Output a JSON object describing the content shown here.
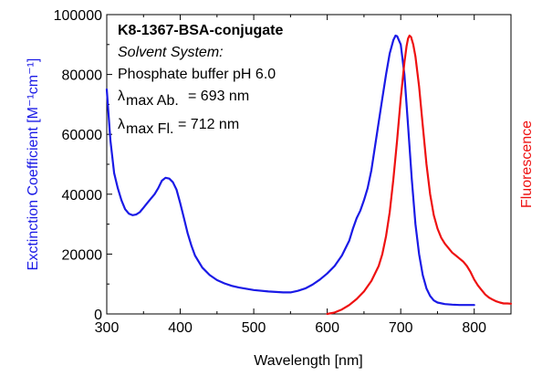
{
  "chart_data": {
    "type": "line",
    "title": "",
    "xlabel": "Wavelength [nm]",
    "ylabel_left": "Exctinction Coefficient [M⁻¹cm⁻¹]",
    "ylabel_right": "Fluorescence",
    "xlim": [
      300,
      850
    ],
    "ylim": [
      0,
      100000
    ],
    "x_ticks": [
      300,
      400,
      500,
      600,
      700,
      800
    ],
    "y_ticks": [
      0,
      20000,
      40000,
      60000,
      80000,
      100000
    ],
    "grid": false,
    "annotation": {
      "compound": "K8-1367-BSA-conjugate",
      "solvent_heading": "Solvent System:",
      "solvent": "Phosphate buffer pH 6.0",
      "abs_label": "max Ab.",
      "abs_value": "= 693 nm",
      "fl_label": "max Fl.",
      "fl_value": "= 712 nm",
      "lambda": "λ"
    },
    "colors": {
      "absorbance": "#1a1ae6",
      "fluorescence": "#ee1111",
      "axis": "#000000"
    },
    "series": [
      {
        "axis": "left",
        "color": "#1a1ae6",
        "x": [
          300,
          305,
          310,
          315,
          320,
          325,
          330,
          335,
          340,
          345,
          350,
          355,
          360,
          365,
          370,
          375,
          380,
          385,
          390,
          395,
          400,
          405,
          410,
          415,
          420,
          430,
          440,
          450,
          460,
          470,
          480,
          500,
          520,
          540,
          550,
          560,
          570,
          580,
          590,
          600,
          610,
          620,
          630,
          635,
          640,
          645,
          650,
          655,
          660,
          665,
          670,
          675,
          680,
          685,
          690,
          693,
          695,
          700,
          705,
          710,
          715,
          720,
          725,
          730,
          735,
          740,
          745,
          750,
          760,
          770,
          780,
          790,
          800
        ],
        "y": [
          75000,
          58000,
          47000,
          42000,
          38000,
          35000,
          33500,
          33000,
          33200,
          34000,
          35500,
          37000,
          38500,
          40000,
          42000,
          44500,
          45500,
          45200,
          44000,
          41500,
          37000,
          32000,
          27000,
          23000,
          19500,
          15500,
          13000,
          11300,
          10200,
          9400,
          8800,
          8000,
          7500,
          7200,
          7200,
          7700,
          8500,
          9800,
          11500,
          13500,
          16000,
          19500,
          24500,
          28500,
          32000,
          34500,
          38000,
          42000,
          48000,
          56000,
          64000,
          72000,
          80000,
          87000,
          91500,
          93000,
          92800,
          90000,
          80000,
          63000,
          45000,
          30000,
          20000,
          13000,
          8500,
          6000,
          4500,
          3800,
          3300,
          3100,
          3000,
          3000,
          3000
        ]
      },
      {
        "axis": "right",
        "color": "#ee1111",
        "x": [
          600,
          610,
          620,
          630,
          640,
          650,
          660,
          670,
          675,
          680,
          685,
          690,
          695,
          700,
          705,
          708,
          710,
          712,
          714,
          717,
          720,
          725,
          730,
          735,
          740,
          745,
          750,
          755,
          760,
          765,
          770,
          775,
          780,
          785,
          790,
          795,
          800,
          805,
          810,
          815,
          820,
          825,
          830,
          835,
          840,
          845,
          850
        ],
        "y": [
          0,
          500,
          1500,
          3000,
          5000,
          7500,
          11000,
          16000,
          20000,
          26000,
          34000,
          45000,
          58000,
          72000,
          84000,
          89500,
          92000,
          93000,
          92500,
          90000,
          86000,
          76000,
          63000,
          50000,
          40000,
          33000,
          28500,
          25500,
          23500,
          22000,
          20500,
          19500,
          18500,
          17500,
          16000,
          14000,
          11500,
          9500,
          8000,
          6500,
          5500,
          4800,
          4200,
          3800,
          3500,
          3500,
          3400
        ]
      }
    ]
  }
}
